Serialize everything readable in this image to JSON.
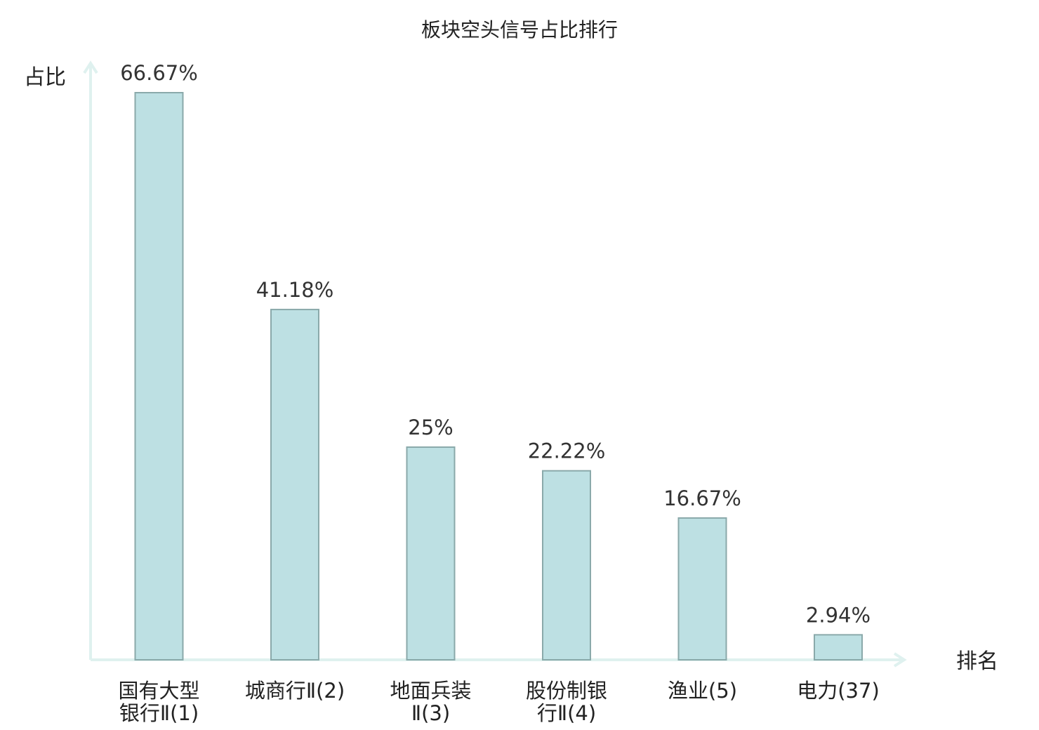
{
  "chart_data": {
    "type": "bar",
    "title": "板块空头信号占比排行",
    "ylabel": "占比",
    "xlabel": "排名",
    "ylim": [
      0,
      70
    ],
    "grid": false,
    "legend": "none",
    "categories": [
      [
        "国有大型",
        "银行Ⅱ(1)"
      ],
      [
        "城商行Ⅱ(2)"
      ],
      [
        "地面兵装",
        "Ⅱ(3)"
      ],
      [
        "股份制银",
        "行Ⅱ(4)"
      ],
      [
        "渔业(5)"
      ],
      [
        "电力(37)"
      ]
    ],
    "values": [
      66.67,
      41.18,
      25,
      22.22,
      16.67,
      2.94
    ],
    "value_labels": [
      "66.67%",
      "41.18%",
      "25%",
      "22.22%",
      "16.67%",
      "2.94%"
    ],
    "highlight_index": 5
  },
  "colors": {
    "bar_fill": "#bde0e3",
    "bar_stroke": "#8aa9aa",
    "axis": "#dff1ef",
    "text": "#222222",
    "value_text": "#333333",
    "highlight": "#e0201a"
  }
}
